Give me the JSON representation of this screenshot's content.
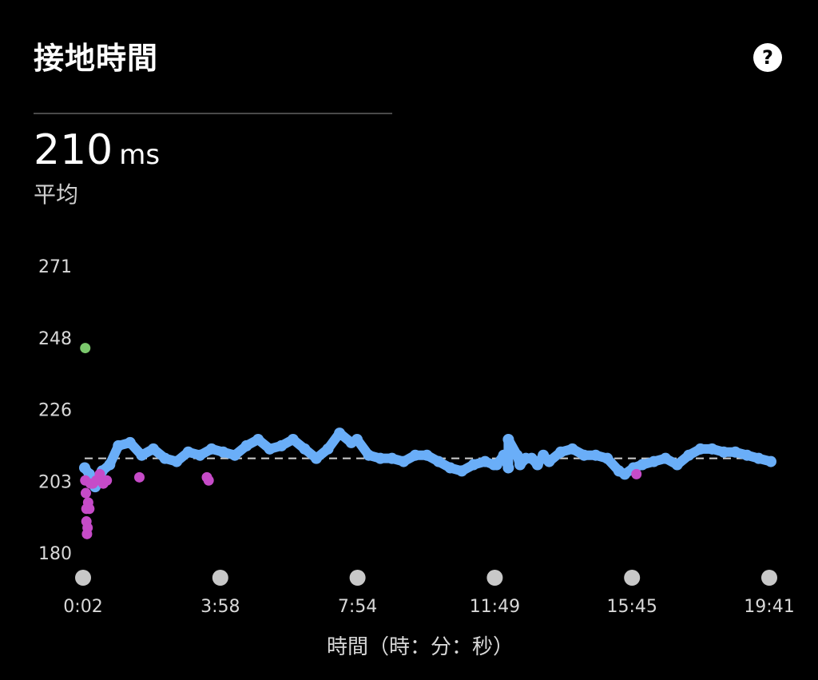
{
  "header": {
    "title": "接地時間",
    "help_icon": "help-icon",
    "help_glyph": "?"
  },
  "summary": {
    "value": "210",
    "unit": "ms",
    "label": "平均"
  },
  "colors": {
    "background": "#000000",
    "series_main": "#6aaef8",
    "series_low": "#c64bc8",
    "series_high": "#7bc86c",
    "average_line": "#cfcfcf",
    "tick_marker": "#c8c8c8"
  },
  "chart_data": {
    "type": "scatter",
    "xlabel": "時間（時：分：秒）",
    "ylabel": "",
    "x_ticks": [
      "0:02",
      "3:58",
      "7:54",
      "11:49",
      "15:45",
      "19:41"
    ],
    "y_ticks": [
      "271",
      "248",
      "226",
      "203",
      "180"
    ],
    "x_range_seconds": [
      2,
      1181
    ],
    "ylim": [
      180,
      271
    ],
    "average": 210,
    "grid": false,
    "series": [
      {
        "name": "",
        "color": "#6aaef8",
        "points": [
          [
            2,
            207
          ],
          [
            10,
            205
          ],
          [
            20,
            201
          ],
          [
            32,
            206
          ],
          [
            45,
            208
          ],
          [
            60,
            214
          ],
          [
            80,
            215
          ],
          [
            100,
            211
          ],
          [
            120,
            213
          ],
          [
            140,
            210
          ],
          [
            160,
            209
          ],
          [
            180,
            212
          ],
          [
            200,
            211
          ],
          [
            220,
            213
          ],
          [
            240,
            212
          ],
          [
            260,
            211
          ],
          [
            280,
            214
          ],
          [
            300,
            216
          ],
          [
            320,
            213
          ],
          [
            340,
            214
          ],
          [
            360,
            216
          ],
          [
            380,
            213
          ],
          [
            400,
            210
          ],
          [
            420,
            213
          ],
          [
            440,
            218
          ],
          [
            460,
            215
          ],
          [
            470,
            216
          ],
          [
            490,
            211
          ],
          [
            510,
            210
          ],
          [
            530,
            210
          ],
          [
            550,
            209
          ],
          [
            570,
            211
          ],
          [
            590,
            211
          ],
          [
            610,
            209
          ],
          [
            630,
            207
          ],
          [
            650,
            206
          ],
          [
            670,
            208
          ],
          [
            690,
            209
          ],
          [
            710,
            208
          ],
          [
            730,
            207
          ],
          [
            750,
            208
          ],
          [
            770,
            210
          ],
          [
            790,
            211
          ],
          [
            705,
            208
          ],
          [
            722,
            211
          ],
          [
            730,
            216
          ],
          [
            745,
            211
          ],
          [
            760,
            210
          ],
          [
            780,
            208
          ],
          [
            800,
            209
          ],
          [
            820,
            212
          ],
          [
            840,
            213
          ],
          [
            860,
            211
          ],
          [
            880,
            211
          ],
          [
            900,
            210
          ],
          [
            920,
            206
          ],
          [
            930,
            205
          ],
          [
            945,
            207
          ],
          [
            960,
            208
          ],
          [
            980,
            209
          ],
          [
            1000,
            210
          ],
          [
            1020,
            208
          ],
          [
            1040,
            211
          ],
          [
            1060,
            213
          ],
          [
            1080,
            213
          ],
          [
            1100,
            212
          ],
          [
            1120,
            212
          ],
          [
            1140,
            211
          ],
          [
            1160,
            210
          ],
          [
            1181,
            209
          ]
        ]
      },
      {
        "name": "",
        "color": "#c64bc8",
        "points": [
          [
            3,
            203
          ],
          [
            4,
            199
          ],
          [
            5,
            194
          ],
          [
            5,
            190
          ],
          [
            6,
            186
          ],
          [
            7,
            188
          ],
          [
            8,
            196
          ],
          [
            10,
            194
          ],
          [
            12,
            202
          ],
          [
            16,
            202
          ],
          [
            22,
            203
          ],
          [
            28,
            205
          ],
          [
            34,
            202
          ],
          [
            40,
            203
          ],
          [
            96,
            204
          ],
          [
            212,
            204
          ],
          [
            215,
            203
          ],
          [
            950,
            205
          ]
        ]
      },
      {
        "name": "",
        "color": "#7bc86c",
        "points": [
          [
            3,
            245
          ]
        ]
      }
    ]
  }
}
